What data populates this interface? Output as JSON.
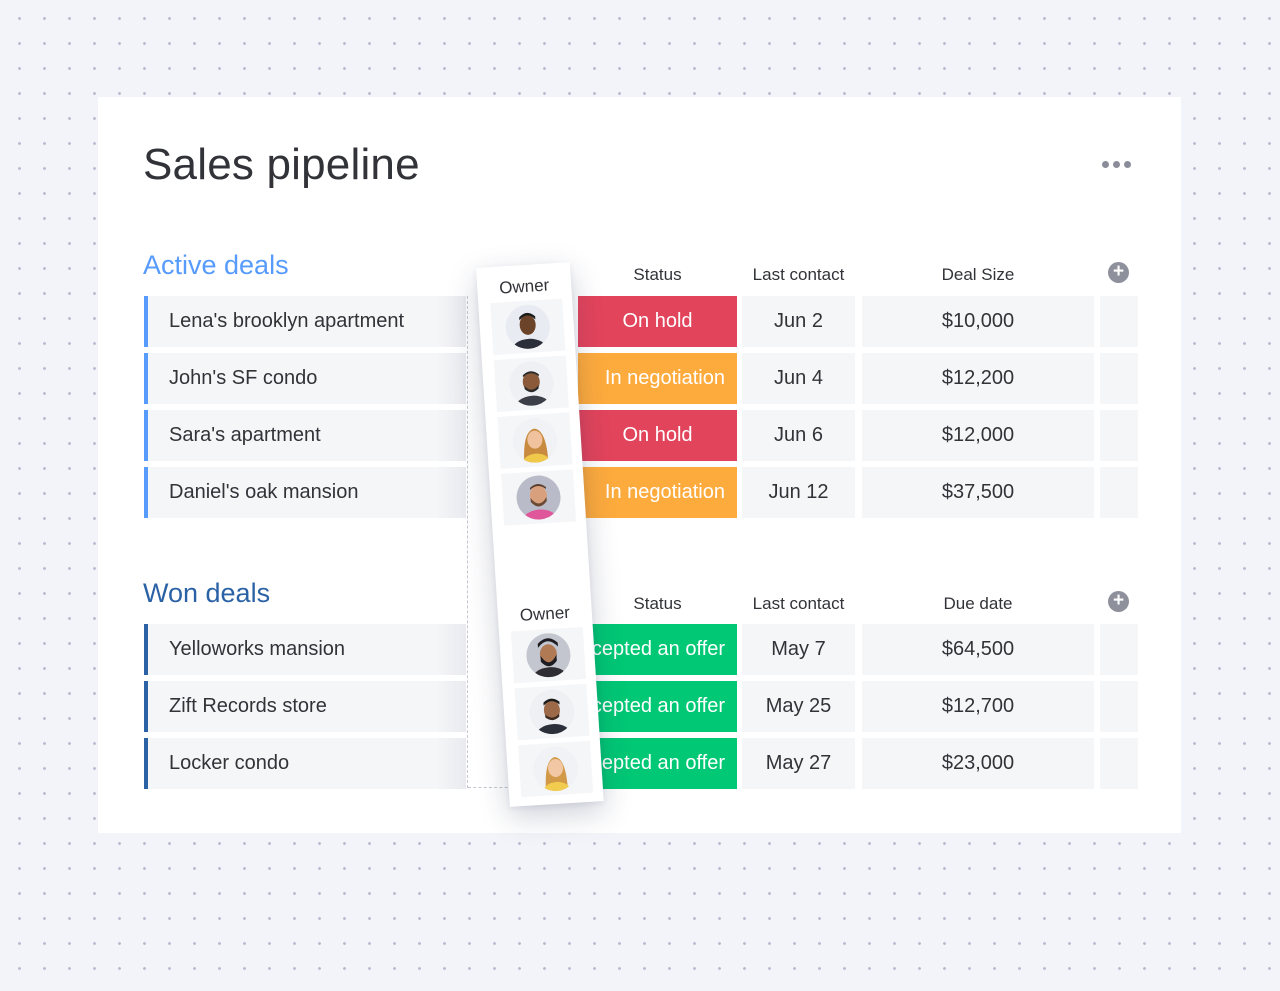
{
  "page": {
    "title": "Sales pipeline",
    "more_icon": "more-horizontal-icon"
  },
  "active_group": {
    "title": "Active deals",
    "columns": {
      "owner": "Owner",
      "status": "Status",
      "last_contact": "Last contact",
      "deal_size": "Deal Size"
    },
    "add_column_icon": "plus-circle-icon",
    "color": "#579bfc",
    "rows": [
      {
        "name": "Lena's brooklyn apartment",
        "status": "On hold",
        "status_color": "#e2445c",
        "last_contact": "Jun 2",
        "amount": "$10,000",
        "avatar": "person-avatar"
      },
      {
        "name": "John's SF condo",
        "status": "In negotiation",
        "status_color": "#fdab3d",
        "last_contact": "Jun 4",
        "amount": "$12,200",
        "avatar": "person-avatar"
      },
      {
        "name": "Sara's apartment",
        "status": "On hold",
        "status_color": "#e2445c",
        "last_contact": "Jun 6",
        "amount": "$12,000",
        "avatar": "person-avatar"
      },
      {
        "name": "Daniel's oak mansion",
        "status": "In negotiation",
        "status_color": "#fdab3d",
        "last_contact": "Jun 12",
        "amount": "$37,500",
        "avatar": "person-avatar"
      }
    ]
  },
  "won_group": {
    "title": "Won deals",
    "columns": {
      "owner": "Owner",
      "status": "Status",
      "last_contact": "Last contact",
      "due_date": "Due date"
    },
    "add_column_icon": "plus-circle-icon",
    "color": "#2b62a6",
    "rows": [
      {
        "name": "Yelloworks mansion",
        "status": "Accepted an offer",
        "status_color": "#00c875",
        "last_contact": "May 7",
        "amount": "$64,500",
        "avatar": "person-avatar"
      },
      {
        "name": "Zift Records store",
        "status": "Accepted an offer",
        "status_color": "#00c875",
        "last_contact": "May 25",
        "amount": "$12,700",
        "avatar": "person-avatar"
      },
      {
        "name": "Locker condo",
        "status": "Accepted an offer",
        "status_color": "#00c875",
        "last_contact": "May 27",
        "amount": "$23,000",
        "avatar": "person-avatar"
      }
    ]
  }
}
